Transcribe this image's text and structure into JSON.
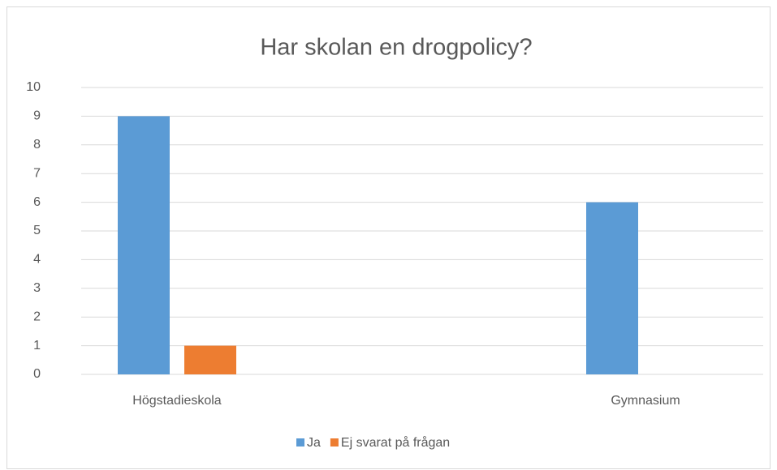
{
  "chart_data": {
    "type": "bar",
    "title": "Har skolan en drogpolicy?",
    "categories": [
      "Högstadieskola",
      "Gymnasium"
    ],
    "series": [
      {
        "name": "Ja",
        "color": "#5b9bd5",
        "values": [
          9,
          6
        ]
      },
      {
        "name": "Ej svarat på frågan",
        "color": "#ed7d31",
        "values": [
          1,
          0
        ]
      }
    ],
    "ylim": [
      0,
      10
    ],
    "yticks": [
      0,
      1,
      2,
      3,
      4,
      5,
      6,
      7,
      8,
      9,
      10
    ],
    "grid": true,
    "legend": "bottom"
  }
}
